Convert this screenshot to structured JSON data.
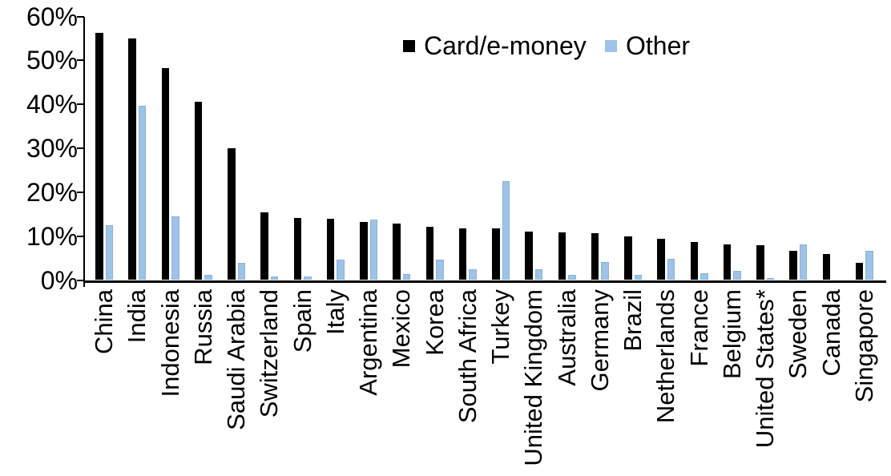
{
  "chart_data": {
    "type": "bar",
    "title": "",
    "xlabel": "",
    "ylabel": "",
    "ylim": [
      0,
      60
    ],
    "yticks": [
      "0%",
      "10%",
      "20%",
      "30%",
      "40%",
      "50%",
      "60%"
    ],
    "grid": false,
    "legend_position": "top-center",
    "categories": [
      "China",
      "India",
      "Indonesia",
      "Russia",
      "Saudi Arabia",
      "Switzerland",
      "Spain",
      "Italy",
      "Argentina",
      "Mexico",
      "Korea",
      "South Africa",
      "Turkey",
      "United Kingdom",
      "Australia",
      "Germany",
      "Brazil",
      "Netherlands",
      "France",
      "Belgium",
      "United States*",
      "Sweden",
      "Canada",
      "Singapore"
    ],
    "series": [
      {
        "name": "Card/e-money",
        "color": "#000000",
        "values": [
          56.2,
          55.0,
          48.2,
          40.5,
          30.0,
          15.5,
          14.2,
          14.0,
          13.3,
          12.9,
          12.2,
          11.7,
          11.7,
          11.0,
          10.8,
          10.6,
          10.0,
          9.4,
          8.7,
          8.2,
          7.9,
          6.6,
          6.0,
          3.9
        ]
      },
      {
        "name": "Other",
        "color": "#9DC3E6",
        "values": [
          12.5,
          39.7,
          14.5,
          1.2,
          4.0,
          0.9,
          0.9,
          4.6,
          13.8,
          1.4,
          4.6,
          2.5,
          22.6,
          2.4,
          1.1,
          4.1,
          1.2,
          4.9,
          1.5,
          2.1,
          0.4,
          8.1,
          0,
          6.7
        ]
      }
    ]
  }
}
